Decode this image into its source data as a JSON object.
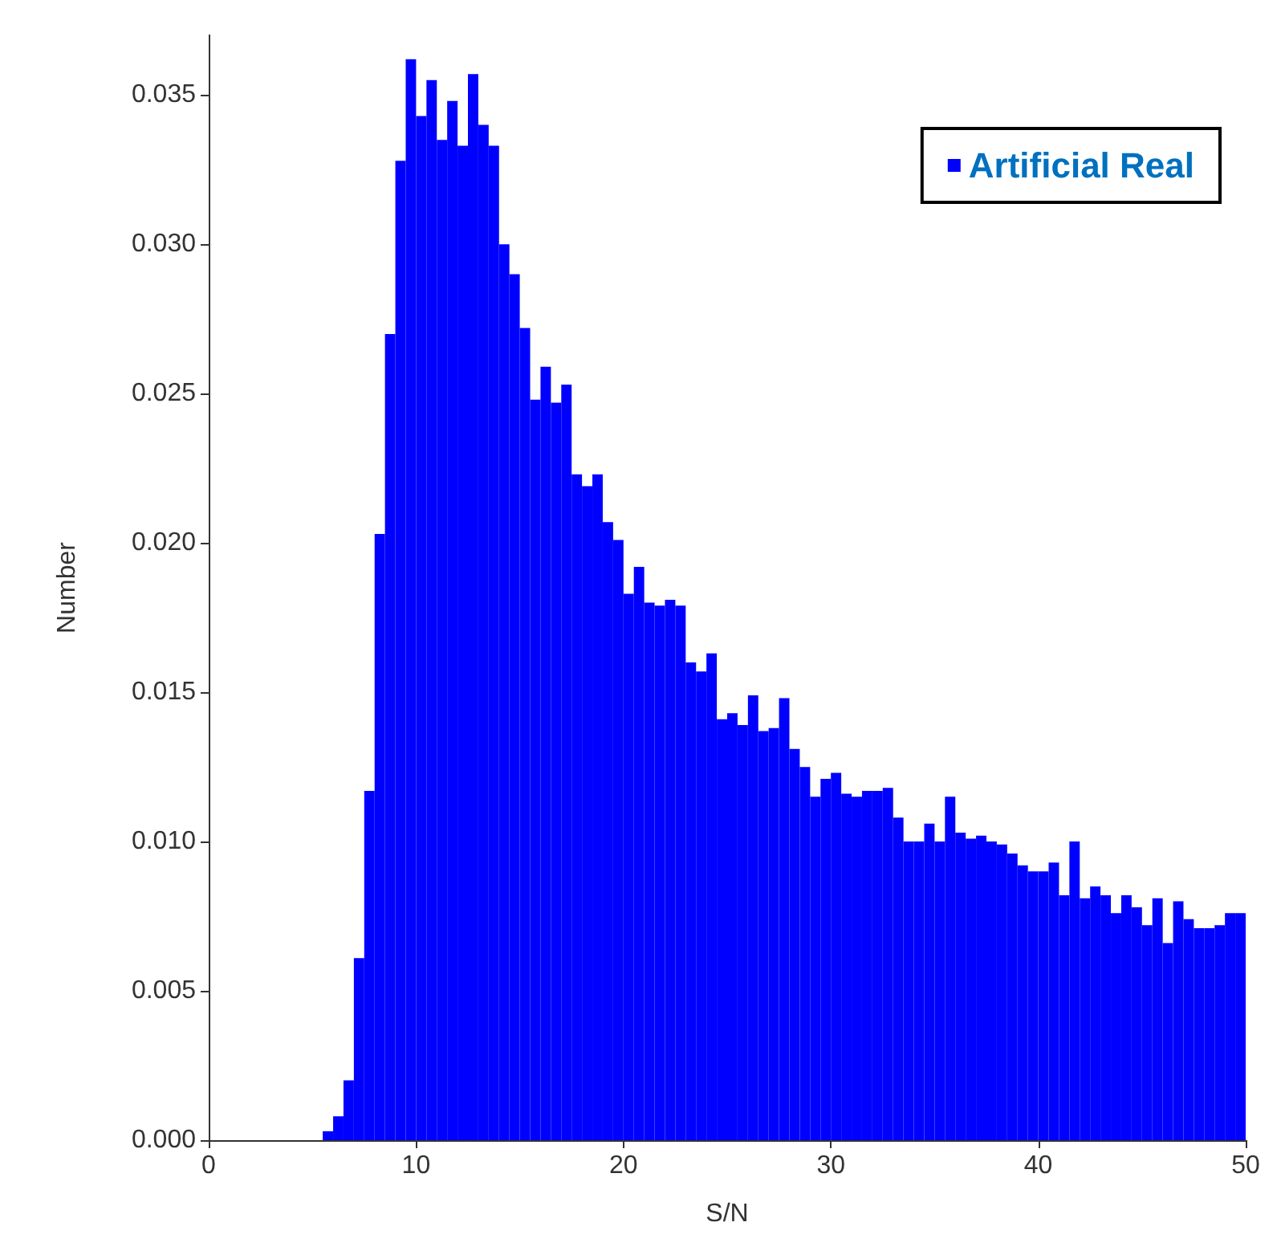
{
  "chart_data": {
    "type": "histogram",
    "xlabel": "S/N",
    "ylabel": "Number",
    "bins": [
      0,
      0.5,
      1,
      1.5,
      2,
      2.5,
      3,
      3.5,
      4,
      4.5,
      5,
      5.5,
      6,
      6.5,
      7,
      7.5,
      8,
      8.5,
      9,
      9.5,
      10,
      10.5,
      11,
      11.5,
      12,
      12.5,
      13,
      13.5,
      14,
      14.5,
      15,
      15.5,
      16,
      16.5,
      17,
      17.5,
      18,
      18.5,
      19,
      19.5,
      20,
      20.5,
      21,
      21.5,
      22,
      22.5,
      23,
      23.5,
      24,
      24.5,
      25,
      25.5,
      26,
      26.5,
      27,
      27.5,
      28,
      28.5,
      29,
      29.5,
      30,
      30.5,
      31,
      31.5,
      32,
      32.5,
      33,
      33.5,
      34,
      34.5,
      35,
      35.5,
      36,
      36.5,
      37,
      37.5,
      38,
      38.5,
      39,
      39.5,
      40,
      40.5,
      41,
      41.5,
      42,
      42.5,
      43,
      43.5,
      44,
      44.5,
      45,
      45.5,
      46,
      46.5,
      47,
      47.5,
      48,
      48.5,
      49,
      49.5,
      50
    ],
    "series": [
      {
        "name": "Artificial Real",
        "color": "#0000ff",
        "values": [
          0,
          0,
          0,
          0,
          0,
          0,
          0,
          0,
          0,
          0,
          0,
          0.0003,
          0.0008,
          0.002,
          0.0061,
          0.0117,
          0.0203,
          0.027,
          0.0328,
          0.0362,
          0.0343,
          0.0355,
          0.0335,
          0.0348,
          0.0333,
          0.0357,
          0.034,
          0.0333,
          0.03,
          0.029,
          0.0272,
          0.0248,
          0.0259,
          0.0247,
          0.0253,
          0.0223,
          0.0219,
          0.0223,
          0.0207,
          0.0201,
          0.0183,
          0.0192,
          0.018,
          0.0179,
          0.0181,
          0.0179,
          0.016,
          0.0157,
          0.0163,
          0.0141,
          0.0143,
          0.0139,
          0.0149,
          0.0137,
          0.0138,
          0.0148,
          0.0131,
          0.0125,
          0.0115,
          0.0121,
          0.0123,
          0.0116,
          0.0115,
          0.0117,
          0.0117,
          0.0118,
          0.0108,
          0.01,
          0.01,
          0.0106,
          0.01,
          0.0115,
          0.0103,
          0.0101,
          0.0102,
          0.01,
          0.0099,
          0.0096,
          0.0092,
          0.009,
          0.009,
          0.0093,
          0.0082,
          0.01,
          0.0081,
          0.0085,
          0.0082,
          0.0076,
          0.0082,
          0.0078,
          0.0072,
          0.0081,
          0.0066,
          0.008,
          0.0074,
          0.0071,
          0.0071,
          0.0072,
          0.0076,
          0.0076
        ]
      }
    ],
    "xlim": [
      0,
      50
    ],
    "xticks": [
      0,
      10,
      20,
      30,
      40,
      50
    ],
    "ylim": [
      0,
      0.037
    ],
    "yticks": [
      {
        "value": 0,
        "label": "0.000"
      },
      {
        "value": 0.005,
        "label": "0.005"
      },
      {
        "value": 0.01,
        "label": "0.010"
      },
      {
        "value": 0.015,
        "label": "0.015"
      },
      {
        "value": 0.02,
        "label": "0.020"
      },
      {
        "value": 0.025,
        "label": "0.025"
      },
      {
        "value": 0.03,
        "label": "0.030"
      },
      {
        "value": 0.035,
        "label": "0.035"
      }
    ],
    "grid": false,
    "legend": "top right"
  }
}
